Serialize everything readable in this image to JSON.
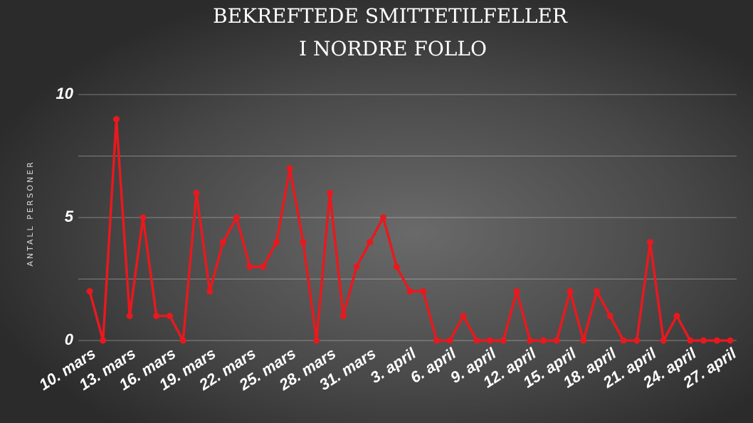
{
  "chart_data": {
    "type": "line",
    "title": "BEKREFTEDE SMITTETILFELLER",
    "subtitle": "I NORDRE FOLLO",
    "y_label": "ANTALL PERSONER",
    "categories": [
      "10. mars",
      null,
      null,
      "13. mars",
      null,
      null,
      "16. mars",
      null,
      null,
      "19. mars",
      null,
      null,
      "22. mars",
      null,
      null,
      "25. mars",
      null,
      null,
      "28. mars",
      null,
      null,
      "31. mars",
      null,
      null,
      "3. april",
      null,
      null,
      "6. april",
      null,
      null,
      "9. april",
      null,
      null,
      "12. april",
      null,
      null,
      "15. april",
      null,
      null,
      "18. april",
      null,
      null,
      "21. april",
      null,
      null,
      "24. april",
      null,
      null,
      "27. april"
    ],
    "values": [
      2,
      0,
      9,
      1,
      5,
      1,
      1,
      0,
      6,
      2,
      4,
      5,
      3,
      3,
      4,
      7,
      4,
      0,
      6,
      1,
      3,
      4,
      5,
      3,
      2,
      2,
      0,
      0,
      1,
      0,
      0,
      0,
      2,
      0,
      0,
      0,
      2,
      0,
      2,
      1,
      0,
      0,
      4,
      0,
      1,
      0,
      0,
      0,
      0
    ],
    "color": "#e8191e",
    "ylim": [
      0,
      10
    ],
    "yticks": [
      0,
      5,
      10
    ],
    "minor_yticks": [
      2.5,
      7.5
    ],
    "grid": true
  }
}
